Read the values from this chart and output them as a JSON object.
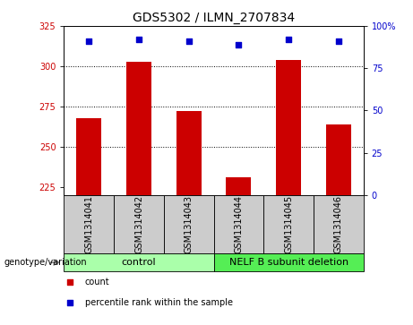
{
  "title": "GDS5302 / ILMN_2707834",
  "samples": [
    "GSM1314041",
    "GSM1314042",
    "GSM1314043",
    "GSM1314044",
    "GSM1314045",
    "GSM1314046"
  ],
  "counts": [
    268,
    303,
    272,
    231,
    304,
    264
  ],
  "percentile_ranks": [
    91,
    92,
    91,
    89,
    92,
    91
  ],
  "ylim_left": [
    220,
    325
  ],
  "ylim_right": [
    0,
    100
  ],
  "yticks_left": [
    225,
    250,
    275,
    300,
    325
  ],
  "yticks_right": [
    0,
    25,
    50,
    75,
    100
  ],
  "bar_color": "#cc0000",
  "dot_color": "#0000cc",
  "groups": [
    {
      "label": "control",
      "samples": [
        0,
        1,
        2
      ],
      "color": "#aaffaa"
    },
    {
      "label": "NELF B subunit deletion",
      "samples": [
        3,
        4,
        5
      ],
      "color": "#55ee55"
    }
  ],
  "genotype_label": "genotype/variation",
  "legend_count": "count",
  "legend_percentile": "percentile rank within the sample",
  "bar_width": 0.5,
  "baseline": 220,
  "grid_lines": [
    250,
    275,
    300
  ],
  "sample_box_color": "#cccccc",
  "title_fontsize": 10,
  "tick_fontsize": 7,
  "label_fontsize": 7,
  "group_fontsize": 8
}
